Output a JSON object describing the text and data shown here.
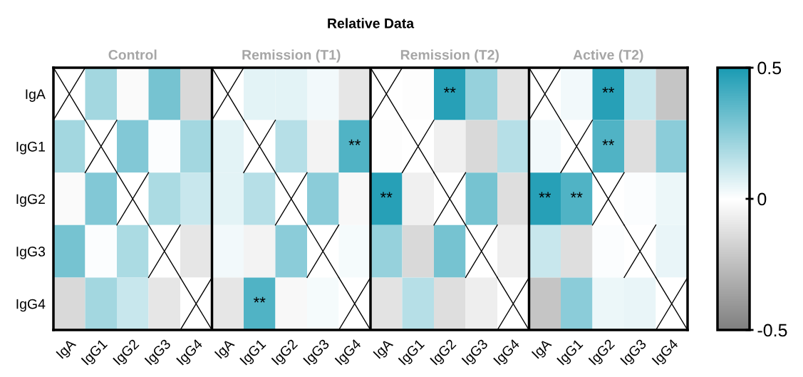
{
  "chart_data": {
    "type": "heatmap",
    "title": "Relative Data",
    "annotations": [
      "Control",
      "Remission (T1)",
      "Remission (T2)",
      "Active (T2)"
    ],
    "categories": [
      "IgA",
      "IgG1",
      "IgG2",
      "IgG3",
      "IgG4",
      "IgA",
      "IgG1",
      "IgG2",
      "IgG3",
      "IgG4",
      "IgA",
      "IgG1",
      "IgG2",
      "IgG3",
      "IgG4",
      "IgA",
      "IgG1",
      "IgG2",
      "IgG3",
      "IgG4"
    ],
    "y_categories": [
      "IgA",
      "IgG1",
      "IgG2",
      "IgG3",
      "IgG4"
    ],
    "cells": [
      [
        null,
        0.2,
        -0.02,
        0.3,
        -0.15,
        null,
        0.06,
        0.06,
        0.03,
        -0.1,
        null,
        -0.01,
        0.47,
        0.23,
        -0.11,
        null,
        0.03,
        0.47,
        0.12,
        -0.23
      ],
      [
        0.2,
        null,
        0.27,
        0.01,
        0.2,
        0.06,
        null,
        0.16,
        -0.05,
        0.38,
        -0.01,
        null,
        -0.06,
        -0.15,
        0.16,
        0.03,
        null,
        0.38,
        -0.13,
        0.25
      ],
      [
        -0.02,
        0.27,
        null,
        0.18,
        0.12,
        0.06,
        0.16,
        null,
        0.25,
        -0.03,
        0.47,
        -0.06,
        null,
        0.3,
        -0.13,
        0.47,
        0.38,
        null,
        0.01,
        0.04
      ],
      [
        0.3,
        0.01,
        0.18,
        null,
        -0.1,
        0.03,
        -0.05,
        0.25,
        null,
        0.02,
        0.23,
        -0.15,
        0.3,
        null,
        -0.07,
        0.12,
        -0.13,
        0.01,
        null,
        0.05
      ],
      [
        -0.15,
        0.2,
        0.12,
        -0.1,
        null,
        -0.1,
        0.38,
        -0.03,
        0.02,
        null,
        -0.11,
        0.16,
        -0.13,
        -0.07,
        null,
        -0.23,
        0.25,
        0.04,
        0.05,
        null
      ]
    ],
    "cell_labels": [
      [
        null,
        null,
        null,
        null,
        null,
        null,
        null,
        null,
        null,
        null,
        null,
        null,
        "**",
        null,
        null,
        null,
        null,
        "**",
        null,
        null
      ],
      [
        null,
        null,
        null,
        null,
        null,
        null,
        null,
        null,
        null,
        "**",
        null,
        null,
        null,
        null,
        null,
        null,
        null,
        "**",
        null,
        null
      ],
      [
        null,
        null,
        null,
        null,
        null,
        null,
        null,
        null,
        null,
        null,
        "**",
        null,
        null,
        null,
        null,
        "**",
        "**",
        null,
        null,
        null
      ],
      [
        null,
        null,
        null,
        null,
        null,
        null,
        null,
        null,
        null,
        null,
        null,
        null,
        null,
        null,
        null,
        null,
        null,
        null,
        null,
        null
      ],
      [
        null,
        null,
        null,
        null,
        null,
        null,
        "**",
        null,
        null,
        null,
        null,
        null,
        null,
        null,
        null,
        null,
        null,
        null,
        null,
        null
      ]
    ],
    "clim": [
      -0.5,
      0.5
    ],
    "cticks": [
      0.5,
      0,
      {
        "value": -0.5,
        "label": "-0.5"
      }
    ]
  }
}
